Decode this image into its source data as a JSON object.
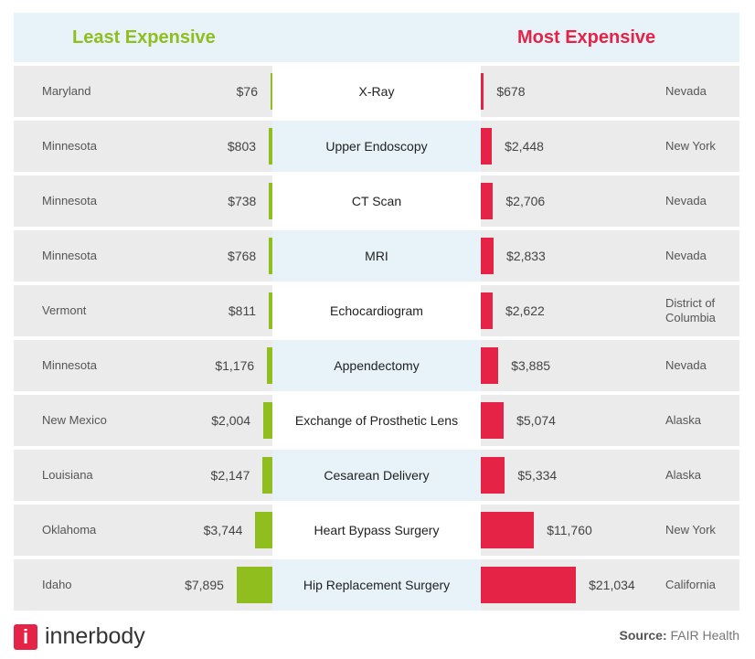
{
  "chart_data": {
    "type": "bar",
    "header": {
      "left": "Least Expensive",
      "right": "Most Expensive"
    },
    "colors": {
      "least": "#8fbe1e",
      "most": "#e52346",
      "header_bg": "#e7f3f9",
      "row_bg": "#ebebeb"
    },
    "rows": [
      {
        "procedure": "X-Ray",
        "least_state": "Maryland",
        "least_value": 76,
        "least_label": "$76",
        "most_state": "Nevada",
        "most_value": 678,
        "most_label": "$678"
      },
      {
        "procedure": "Upper Endoscopy",
        "least_state": "Minnesota",
        "least_value": 803,
        "least_label": "$803",
        "most_state": "New York",
        "most_value": 2448,
        "most_label": "$2,448"
      },
      {
        "procedure": "CT Scan",
        "least_state": "Minnesota",
        "least_value": 738,
        "least_label": "$738",
        "most_state": "Nevada",
        "most_value": 2706,
        "most_label": "$2,706"
      },
      {
        "procedure": "MRI",
        "least_state": "Minnesota",
        "least_value": 768,
        "least_label": "$768",
        "most_state": "Nevada",
        "most_value": 2833,
        "most_label": "$2,833"
      },
      {
        "procedure": "Echocardiogram",
        "least_state": "Vermont",
        "least_value": 811,
        "least_label": "$811",
        "most_state": "District of Columbia",
        "most_value": 2622,
        "most_label": "$2,622"
      },
      {
        "procedure": "Appendectomy",
        "least_state": "Minnesota",
        "least_value": 1176,
        "least_label": "$1,176",
        "most_state": "Nevada",
        "most_value": 3885,
        "most_label": "$3,885"
      },
      {
        "procedure": "Exchange of Prosthetic Lens",
        "least_state": "New Mexico",
        "least_value": 2004,
        "least_label": "$2,004",
        "most_state": "Alaska",
        "most_value": 5074,
        "most_label": "$5,074"
      },
      {
        "procedure": "Cesarean Delivery",
        "least_state": "Louisiana",
        "least_value": 2147,
        "least_label": "$2,147",
        "most_state": "Alaska",
        "most_value": 5334,
        "most_label": "$5,334"
      },
      {
        "procedure": "Heart Bypass Surgery",
        "least_state": "Oklahoma",
        "least_value": 3744,
        "least_label": "$3,744",
        "most_state": "New York",
        "most_value": 11760,
        "most_label": "$11,760"
      },
      {
        "procedure": "Hip Replacement Surgery",
        "least_state": "Idaho",
        "least_value": 7895,
        "least_label": "$7,895",
        "most_state": "California",
        "most_value": 21034,
        "most_label": "$21,034"
      }
    ]
  },
  "footer": {
    "logo_letter": "i",
    "brand": "innerbody",
    "source_label": "Source:",
    "source": "FAIR Health"
  }
}
